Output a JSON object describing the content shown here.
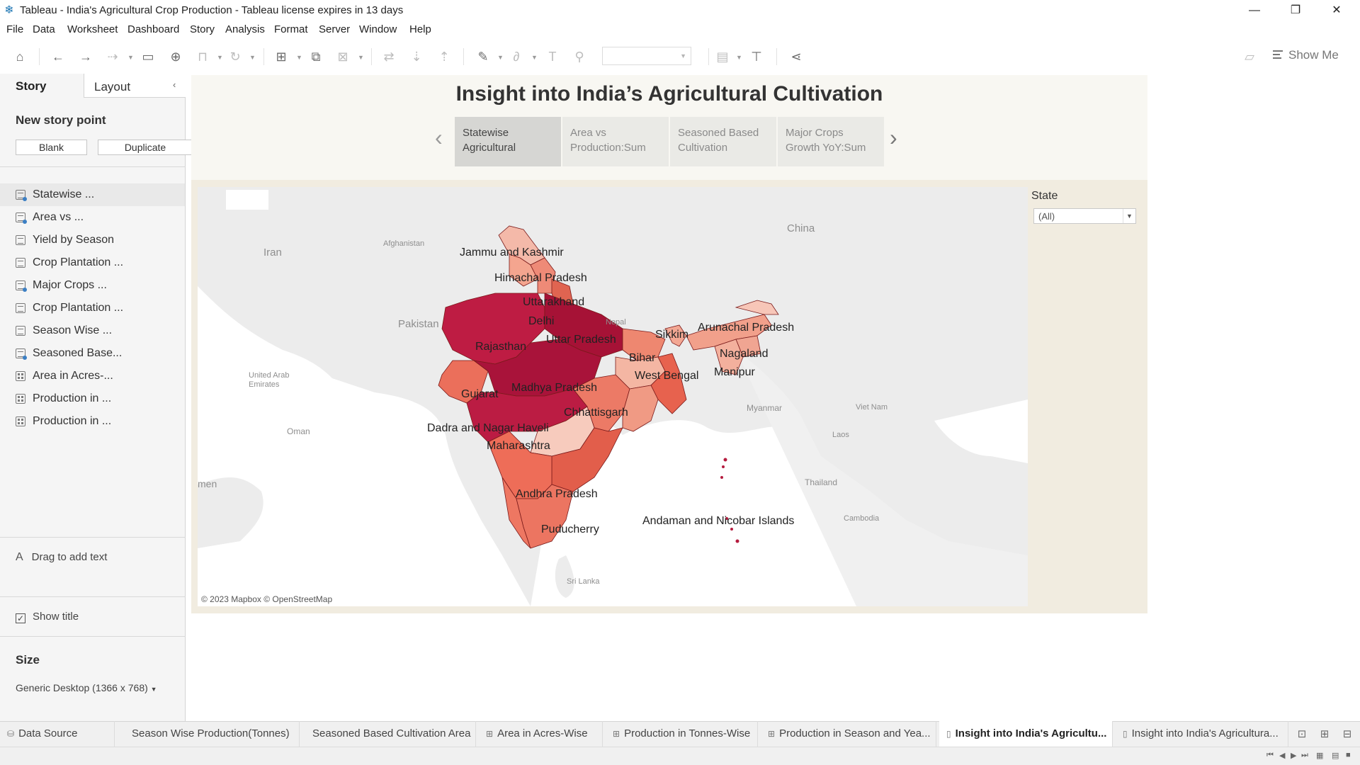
{
  "window": {
    "title": "Tableau - India's Agricultural Crop Production - Tableau license expires in 13 days",
    "minimize": "—",
    "restore": "❐",
    "close": "✕"
  },
  "menu": [
    "File",
    "Data",
    "Worksheet",
    "Dashboard",
    "Story",
    "Analysis",
    "Format",
    "Server",
    "Window",
    "Help"
  ],
  "toolbar": {
    "show_me": "Show Me",
    "dropdown_value": ""
  },
  "left_panel": {
    "tab_story": "Story",
    "tab_layout": "Layout",
    "new_story_point": "New story point",
    "blank_button": "Blank",
    "duplicate_button": "Duplicate",
    "story_points": [
      {
        "label": "Statewise ...",
        "icon": "dashboard-icon",
        "active": true,
        "dot": true
      },
      {
        "label": "Area vs ...",
        "icon": "dashboard-icon",
        "active": false,
        "dot": true
      },
      {
        "label": "Yield by Season",
        "icon": "sheet-icon",
        "active": false,
        "dot": false
      },
      {
        "label": "Crop Plantation ...",
        "icon": "sheet-icon",
        "active": false,
        "dot": false
      },
      {
        "label": "Major Crops ...",
        "icon": "dashboard-icon",
        "active": false,
        "dot": true
      },
      {
        "label": "Crop Plantation ...",
        "icon": "sheet-icon",
        "active": false,
        "dot": false
      },
      {
        "label": "Season Wise ...",
        "icon": "sheet-icon",
        "active": false,
        "dot": false
      },
      {
        "label": "Seasoned Base...",
        "icon": "dashboard-icon",
        "active": false,
        "dot": true
      },
      {
        "label": "Area in Acres-...",
        "icon": "grid-icon",
        "active": false,
        "dot": false
      },
      {
        "label": "Production in ...",
        "icon": "grid-icon",
        "active": false,
        "dot": false
      },
      {
        "label": "Production in ...",
        "icon": "grid-icon",
        "active": false,
        "dot": false
      }
    ],
    "drag_to_add_text": "Drag to add text",
    "show_title": "Show title",
    "show_title_checked": true,
    "size_label": "Size",
    "size_value": "Generic Desktop (1366 x 768)"
  },
  "story": {
    "title": "Insight into India’s Agricultural Cultivation",
    "points": [
      {
        "line1": "Statewise",
        "line2": "Agricultural",
        "active": true
      },
      {
        "line1": "Area vs",
        "line2": "Production:Sum",
        "active": false
      },
      {
        "line1": "Seasoned Based",
        "line2": "Cultivation",
        "active": false
      },
      {
        "line1": "Major Crops",
        "line2": "Growth YoY:Sum",
        "active": false
      }
    ]
  },
  "map": {
    "attribution": "© 2023 Mapbox © OpenStreetMap",
    "colors": {
      "low": "#f7c6b8",
      "mid": "#ec6a57",
      "high": "#b51b3e",
      "highest": "#a10f38",
      "land": "#ececec",
      "water": "#ffffff"
    },
    "state_labels": [
      "Jammu and Kashmir",
      "Himachal Pradesh",
      "Uttarakhand",
      "Delhi",
      "Uttar Pradesh",
      "Rajasthan",
      "Bihar",
      "Sikkim",
      "Arunachal Pradesh",
      "Nagaland",
      "Manipur",
      "West Bengal",
      "Gujarat",
      "Madhya Pradesh",
      "Chhattisgarh",
      "Dadra and Nagar Haveli",
      "Maharashtra",
      "Andhra Pradesh",
      "Puducherry",
      "Andaman and Nicobar Islands"
    ],
    "geo_labels": [
      "China",
      "Afghanistan",
      "Iran",
      "Pakistan",
      "Nepal",
      "United Arab Emirates",
      "Oman",
      "Myanmar",
      "Viet Nam",
      "Laos",
      "Thailand",
      "Cambodia",
      "Sri Lanka",
      "men"
    ],
    "filter": {
      "label": "State",
      "value": "(All)"
    }
  },
  "sheet_tabs": [
    {
      "label": "Data Source",
      "icon": "database-icon",
      "active": false
    },
    {
      "label": "Season Wise Production(Tonnes)",
      "icon": "",
      "active": false
    },
    {
      "label": "Seasoned Based Cultivation Area",
      "icon": "",
      "active": false
    },
    {
      "label": "Area in Acres-Wise",
      "icon": "grid-icon",
      "active": false
    },
    {
      "label": "Production in Tonnes-Wise",
      "icon": "grid-icon",
      "active": false
    },
    {
      "label": "Production in Season and Yea...",
      "icon": "grid-icon",
      "active": false
    },
    {
      "label": "Insight into India's Agricultu...",
      "icon": "story-icon",
      "active": true
    },
    {
      "label": "Insight into India's Agricultura...",
      "icon": "story-icon",
      "active": false
    }
  ]
}
